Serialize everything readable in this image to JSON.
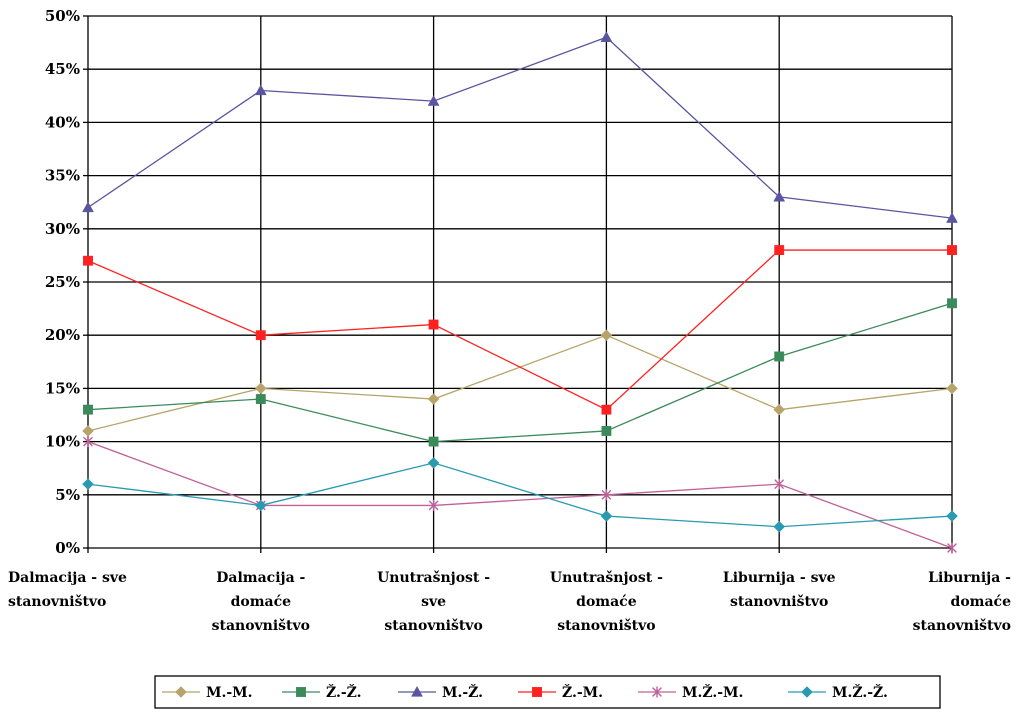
{
  "chart_data": {
    "type": "line",
    "title": "",
    "xlabel": "",
    "ylabel": "",
    "ylim": [
      0,
      50
    ],
    "y_ticks": [
      "0%",
      "5%",
      "10%",
      "15%",
      "20%",
      "25%",
      "30%",
      "35%",
      "40%",
      "45%",
      "50%"
    ],
    "grid": true,
    "legend_position": "bottom",
    "categories": [
      [
        "Dalmacija - sve",
        "stanovništvo"
      ],
      [
        "Dalmacija -",
        "domaće",
        "stanovništvo"
      ],
      [
        "Unutrašnjost -",
        "sve",
        "stanovništvo"
      ],
      [
        "Unutrašnjost -",
        "domaće",
        "stanovništvo"
      ],
      [
        "Liburnija - sve",
        "stanovništvo"
      ],
      [
        "Liburnija -",
        "domaće",
        "stanovništvo"
      ]
    ],
    "series": [
      {
        "name": "M.-M.",
        "color": "#b8a46a",
        "marker": "diamond",
        "values": [
          11,
          15,
          14,
          20,
          13,
          15
        ]
      },
      {
        "name": "Ž.-Ž.",
        "color": "#3b8a5a",
        "marker": "square",
        "values": [
          13,
          14,
          10,
          11,
          18,
          23
        ]
      },
      {
        "name": "M.-Ž.",
        "color": "#5a55a0",
        "marker": "triangle",
        "values": [
          32,
          43,
          42,
          48,
          33,
          31
        ]
      },
      {
        "name": "Ž.-M.",
        "color": "#ff2020",
        "marker": "square",
        "values": [
          27,
          20,
          21,
          13,
          28,
          28
        ]
      },
      {
        "name": "M.Ž.-M.",
        "color": "#c0609a",
        "marker": "star",
        "values": [
          10,
          4,
          4,
          5,
          6,
          0
        ]
      },
      {
        "name": "M.Ž.-Ž.",
        "color": "#2a9ab0",
        "marker": "diamond",
        "values": [
          6,
          4,
          8,
          3,
          2,
          3
        ]
      }
    ]
  }
}
